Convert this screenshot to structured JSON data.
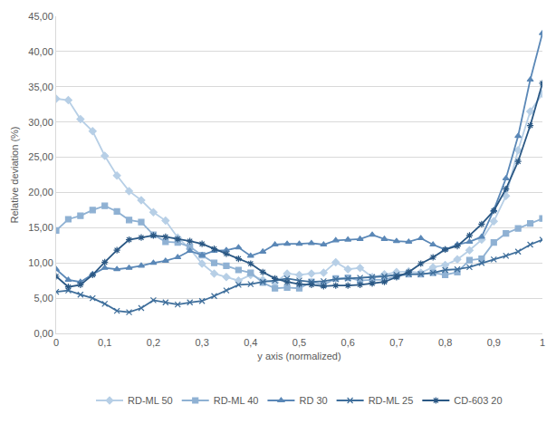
{
  "chart_data": {
    "type": "line",
    "x_label": "y axis (normalized)",
    "y_label": "Relative deviation (%)",
    "x": [
      0,
      0.025,
      0.05,
      0.075,
      0.1,
      0.125,
      0.15,
      0.175,
      0.2,
      0.225,
      0.25,
      0.275,
      0.3,
      0.325,
      0.35,
      0.375,
      0.4,
      0.425,
      0.45,
      0.475,
      0.5,
      0.525,
      0.55,
      0.575,
      0.6,
      0.625,
      0.65,
      0.675,
      0.7,
      0.725,
      0.75,
      0.775,
      0.8,
      0.825,
      0.85,
      0.875,
      0.9,
      0.925,
      0.95,
      0.975,
      1
    ],
    "xlim": [
      0,
      1
    ],
    "xticks": [
      0,
      {
        "value": 0.1,
        "label": "0,1"
      },
      {
        "value": 0.2,
        "label": "0,2"
      },
      {
        "value": 0.3,
        "label": "0,3"
      },
      {
        "value": 0.4,
        "label": "0,4"
      },
      {
        "value": 0.5,
        "label": "0,5"
      },
      {
        "value": 0.6,
        "label": "0,6"
      },
      {
        "value": 0.7,
        "label": "0,7"
      },
      {
        "value": 0.8,
        "label": "0,8"
      },
      {
        "value": 0.9,
        "label": "0,9"
      },
      1
    ],
    "ylim": [
      0,
      45
    ],
    "yticks": [
      {
        "value": 0,
        "label": "0,00"
      },
      {
        "value": 5,
        "label": "5,00"
      },
      {
        "value": 10,
        "label": "10,00"
      },
      {
        "value": 15,
        "label": "15,00"
      },
      {
        "value": 20,
        "label": "20,00"
      },
      {
        "value": 25,
        "label": "25,00"
      },
      {
        "value": 30,
        "label": "30,00"
      },
      {
        "value": 35,
        "label": "35,00"
      },
      {
        "value": 40,
        "label": "40,00"
      },
      {
        "value": 45,
        "label": "45,00"
      }
    ],
    "grid": true,
    "legend": "bottom",
    "series": [
      {
        "name": "RD-ML 50",
        "color": "#b7cfe6",
        "marker": "diamond",
        "values": [
          33.3,
          33.1,
          30.4,
          28.7,
          25.2,
          22.4,
          20.2,
          18.9,
          17.2,
          16.0,
          13.6,
          12.0,
          9.9,
          8.5,
          8.0,
          7.5,
          8.3,
          7.6,
          7.2,
          8.5,
          8.3,
          8.5,
          8.6,
          10.1,
          9.1,
          9.3,
          8.0,
          8.4,
          8.7,
          8.8,
          8.6,
          9.4,
          9.7,
          10.5,
          11.8,
          13.3,
          15.9,
          19.5,
          26.0,
          31.5,
          34.0
        ]
      },
      {
        "name": "RD-ML 40",
        "color": "#8fb1d3",
        "marker": "square",
        "values": [
          14.6,
          16.2,
          16.7,
          17.5,
          18.1,
          17.3,
          16.1,
          15.8,
          14.0,
          13.0,
          12.9,
          12.3,
          11.1,
          10.0,
          9.6,
          9.0,
          8.6,
          7.2,
          6.4,
          6.5,
          6.4,
          7.3,
          6.9,
          7.8,
          7.9,
          7.5,
          7.6,
          7.6,
          8.1,
          8.4,
          8.4,
          8.6,
          8.3,
          8.7,
          10.4,
          10.6,
          12.9,
          14.2,
          14.9,
          15.6,
          16.3
        ]
      },
      {
        "name": "RD 30",
        "color": "#5b88b7",
        "marker": "triangle",
        "values": [
          9.1,
          7.6,
          7.3,
          8.4,
          9.3,
          9.1,
          9.3,
          9.6,
          10.0,
          10.3,
          10.8,
          11.7,
          11.1,
          11.7,
          11.8,
          12.2,
          11.0,
          11.6,
          12.6,
          12.7,
          12.7,
          12.8,
          12.6,
          13.2,
          13.3,
          13.4,
          14.0,
          13.4,
          13.1,
          13.0,
          13.5,
          12.6,
          11.9,
          12.6,
          13.0,
          13.7,
          17.5,
          22.0,
          28.0,
          36.0,
          42.6
        ]
      },
      {
        "name": "RD-ML 25",
        "color": "#3e6e9b",
        "marker": "x",
        "values": [
          5.9,
          6.1,
          5.5,
          5.0,
          4.2,
          3.2,
          3.0,
          3.6,
          4.7,
          4.4,
          4.1,
          4.4,
          4.6,
          5.3,
          6.1,
          6.9,
          7.0,
          7.3,
          7.5,
          7.8,
          7.5,
          7.3,
          7.4,
          7.7,
          7.8,
          7.9,
          8.0,
          8.1,
          8.3,
          8.4,
          8.4,
          8.6,
          9.0,
          9.1,
          9.4,
          10.0,
          10.5,
          11.0,
          11.6,
          12.6,
          13.3
        ]
      },
      {
        "name": "CD-603 20",
        "color": "#2b5884",
        "marker": "asterisk",
        "values": [
          8.1,
          6.6,
          6.9,
          8.3,
          10.1,
          11.8,
          13.3,
          13.6,
          13.9,
          13.7,
          13.4,
          13.1,
          12.7,
          12.0,
          11.3,
          10.6,
          9.9,
          8.7,
          7.8,
          7.3,
          7.0,
          6.9,
          6.7,
          6.8,
          6.8,
          6.9,
          7.1,
          7.3,
          8.0,
          8.7,
          9.9,
          10.8,
          11.9,
          12.4,
          13.9,
          15.5,
          17.4,
          20.5,
          24.4,
          29.5,
          35.5
        ]
      }
    ]
  }
}
